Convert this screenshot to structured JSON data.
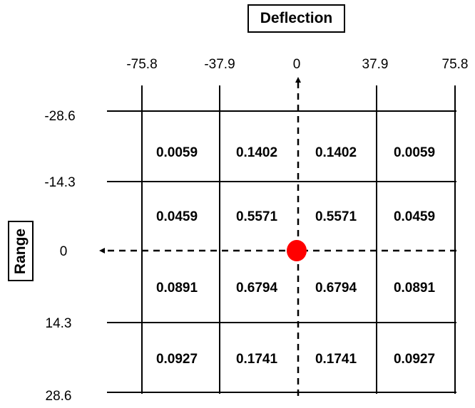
{
  "labels": {
    "deflection": "Deflection",
    "range": "Range"
  },
  "deflection_ticks": [
    "-75.8",
    "-37.9",
    "0",
    "37.9",
    "75.8"
  ],
  "range_ticks": [
    "-28.6",
    "-14.3",
    "0",
    "14.3",
    "28.6"
  ],
  "grid_values": [
    [
      "0.0059",
      "0.1402",
      "0.1402",
      "0.0059"
    ],
    [
      "0.0459",
      "0.5571",
      "0.5571",
      "0.0459"
    ],
    [
      "0.0891",
      "0.6794",
      "0.6794",
      "0.0891"
    ],
    [
      "0.0927",
      "0.1741",
      "0.1741",
      "0.0927"
    ]
  ],
  "colors": {
    "origin_marker": "#ff0000",
    "lines": "#000000"
  }
}
